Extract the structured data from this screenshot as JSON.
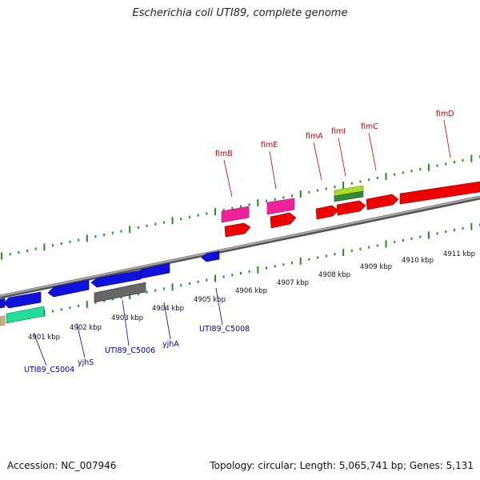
{
  "title": "Escherichia coli UTI89, complete genome",
  "footer": {
    "accession": "Accession: NC_007946",
    "summary": "Topology: circular; Length: 5,065,741 bp; Genes: 5,131"
  },
  "colors": {
    "backbone": "#888888",
    "ticks": "#228B22",
    "forward_label": "#cc0000",
    "reverse_label": "#0000aa",
    "red": "#ee0000",
    "pink": "#ee2299",
    "blue": "#1111dd",
    "gray": "#666666",
    "teal": "#22dd99",
    "lime": "#aadd22",
    "green": "#338833",
    "tan": "#c8b080"
  },
  "scale": {
    "unit": "kbp",
    "labels": [
      "4901 kbp",
      "4902 kbp",
      "4903 kbp",
      "4904 kbp",
      "4905 kbp",
      "4906 kbp",
      "4907 kbp",
      "4908 kbp",
      "4909 kbp",
      "4910 kbp",
      "4911 kbp"
    ]
  },
  "forward_genes": [
    {
      "label": "fimB",
      "color": "red"
    },
    {
      "label": "fimE",
      "color": "red"
    },
    {
      "label": "fimA",
      "color": "red"
    },
    {
      "label": "fimI",
      "color": "red"
    },
    {
      "label": "fimC",
      "color": "red"
    },
    {
      "label": "fimD",
      "color": "red"
    }
  ],
  "reverse_genes": [
    {
      "label": "UTI89_C5004",
      "color": "blue"
    },
    {
      "label": "yjhS",
      "color": "blue"
    },
    {
      "label": "UTI89_C5006",
      "color": "blue"
    },
    {
      "label": "yjhA",
      "color": "blue"
    },
    {
      "label": "UTI89_C5008",
      "color": "blue"
    }
  ]
}
